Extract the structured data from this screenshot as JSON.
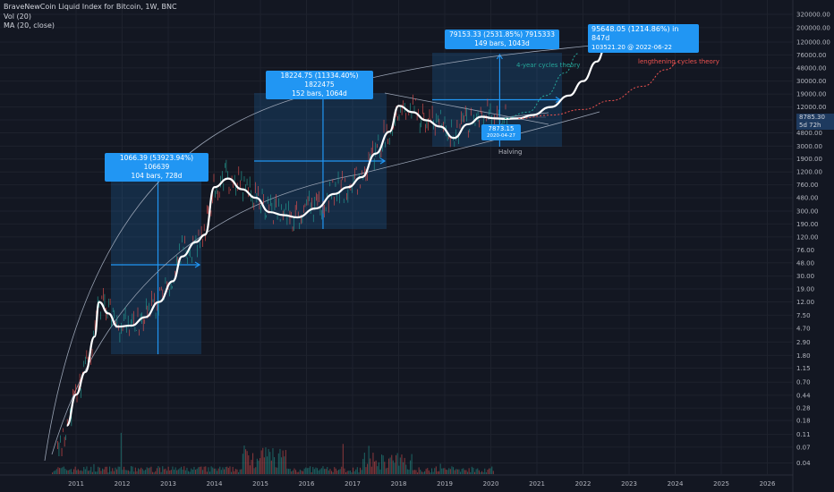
{
  "legend": {
    "title": "BraveNewCoin Liquid Index for Bitcoin, 1W, BNC",
    "vol": "Vol (20)",
    "ma": "MA (20, close)"
  },
  "colors": {
    "background": "#131722",
    "accent": "#2196f3",
    "ma_line": "#ffffff",
    "up": "#26a69a",
    "down": "#ef5350",
    "four_year": "#26a69a",
    "lengthening": "#ef5350"
  },
  "axis": {
    "y_ticks": [
      "320000.00",
      "200000.00",
      "120000.00",
      "76000.00",
      "48000.00",
      "30000.00",
      "19000.00",
      "12000.00",
      "7600.00",
      "4800.00",
      "3000.00",
      "1900.00",
      "1200.00",
      "760.00",
      "480.00",
      "300.00",
      "190.00",
      "120.00",
      "76.00",
      "48.00",
      "30.00",
      "19.00",
      "12.00",
      "7.50",
      "4.70",
      "2.90",
      "1.80",
      "1.15",
      "0.70",
      "0.44",
      "0.28",
      "0.18",
      "0.11",
      "0.07",
      "0.04"
    ],
    "x_ticks": [
      "2011",
      "2012",
      "2013",
      "2014",
      "2015",
      "2016",
      "2017",
      "2018",
      "2019",
      "2020",
      "2021",
      "2022",
      "2023",
      "2024",
      "2025",
      "2026"
    ],
    "price_current": "8785.30",
    "price_ma": "5d 72h"
  },
  "annotations": {
    "cycle1_line1": "1066.39 (53923.94%) 106639",
    "cycle1_line2": "104 bars, 728d",
    "cycle2_line1": "18224.75 (11334.40%) 1822475",
    "cycle2_line2": "152 bars, 1064d",
    "cycle3_line1": "79153.33 (2531.85%) 7915333",
    "cycle3_line2": "149 bars, 1043d",
    "target_line1": "95648.05 (1214.86%) in 847d",
    "target_line2": "103521.20 @ 2022-06-22",
    "low_price": "7873.15",
    "low_date": "2020-04-27",
    "halving": "Halving",
    "four_year": "4-year cycles theory",
    "lengthening": "lengthening cycles theory"
  },
  "chart_data": {
    "type": "line",
    "title": "BraveNewCoin Liquid Index for Bitcoin, 1W, BNC",
    "y_scale": "log",
    "ylim": [
      0.04,
      320000
    ],
    "xlim": [
      2010.5,
      2026.5
    ],
    "series": [
      {
        "name": "MA (20, close)",
        "x": [
          2010.8,
          2011.0,
          2011.2,
          2011.4,
          2011.5,
          2011.7,
          2011.9,
          2012.2,
          2012.5,
          2012.8,
          2013.1,
          2013.3,
          2013.6,
          2013.8,
          2014.0,
          2014.3,
          2014.6,
          2014.9,
          2015.2,
          2015.5,
          2015.8,
          2016.2,
          2016.6,
          2016.9,
          2017.2,
          2017.5,
          2017.8,
          2018.0,
          2018.3,
          2018.6,
          2018.9,
          2019.2,
          2019.5,
          2019.8,
          2020.1,
          2020.3,
          2020.6,
          2020.9,
          2021.3,
          2021.7,
          2022.0,
          2022.3,
          2022.5
        ],
        "values": [
          0.15,
          0.45,
          1.0,
          3.5,
          12,
          8,
          5,
          5.2,
          7,
          12,
          25,
          60,
          100,
          130,
          700,
          950,
          650,
          480,
          290,
          260,
          240,
          330,
          550,
          700,
          1000,
          2300,
          5000,
          12500,
          10000,
          7500,
          6000,
          4000,
          6500,
          8500,
          8000,
          7873,
          8000,
          9000,
          12000,
          18000,
          30000,
          60000,
          103521
        ]
      },
      {
        "name": "4-year cycles theory",
        "x": [
          2020.3,
          2020.8,
          2021.2,
          2021.6,
          2021.9
        ],
        "values": [
          8000,
          10000,
          18000,
          40000,
          80000
        ]
      },
      {
        "name": "lengthening cycles theory",
        "x": [
          2020.6,
          2021.3,
          2022.0,
          2022.6,
          2023.3,
          2023.8,
          2024.1
        ],
        "values": [
          8000,
          9000,
          11000,
          15000,
          25000,
          45000,
          60000
        ]
      }
    ]
  }
}
